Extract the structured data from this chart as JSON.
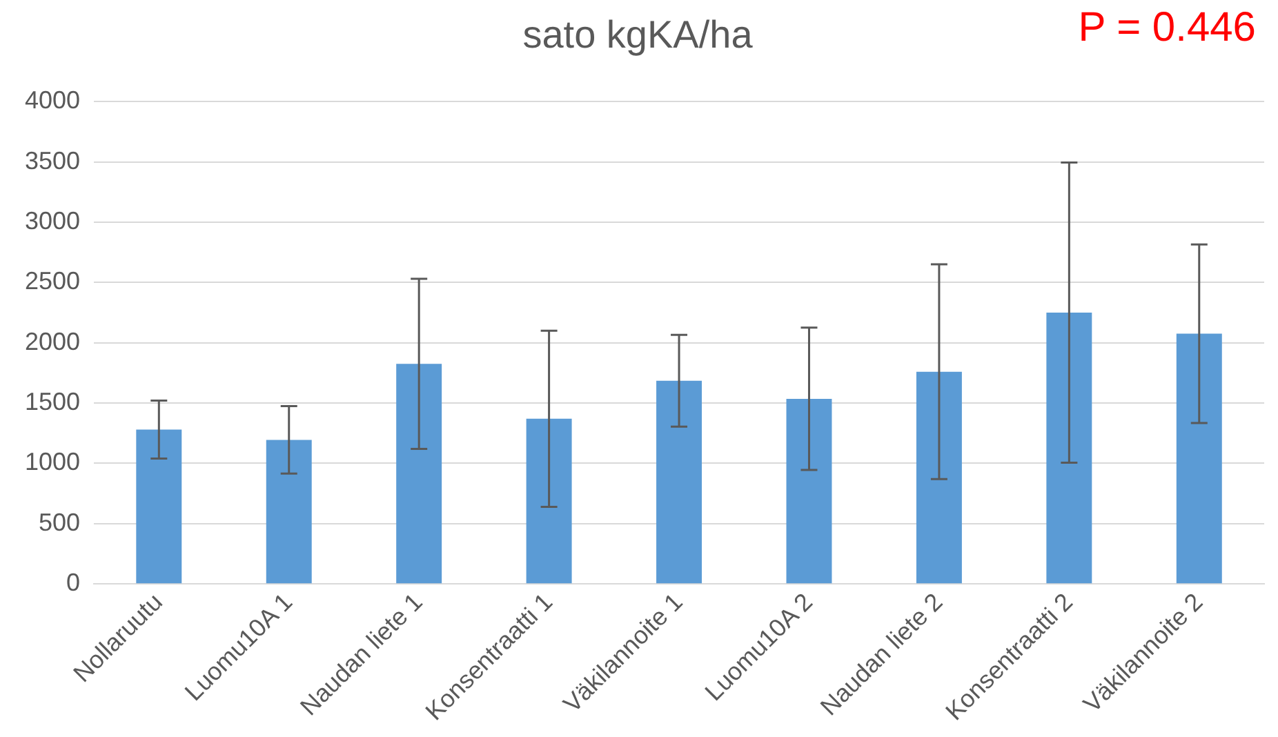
{
  "chart_data": {
    "type": "bar",
    "title": "sato kgKA/ha",
    "annotations": [
      "P = 0.446"
    ],
    "categories": [
      "Nollaruutu",
      "Luomu10A 1",
      "Naudan liete 1",
      "Konsentraatti 1",
      "Väkilannoite 1",
      "Luomu10A 2",
      "Naudan liete 2",
      "Konsentraatti 2",
      "Väkilannoite 2"
    ],
    "values": [
      1280,
      1195,
      1825,
      1370,
      1685,
      1535,
      1760,
      2250,
      2075
    ],
    "errors": [
      240,
      280,
      705,
      730,
      380,
      590,
      890,
      1245,
      740
    ],
    "color": "#5b9bd5",
    "ylim": [
      0,
      4000
    ],
    "yticks": [
      0,
      500,
      1000,
      1500,
      2000,
      2500,
      3000,
      3500,
      4000
    ],
    "grid": "y",
    "legend": false
  }
}
